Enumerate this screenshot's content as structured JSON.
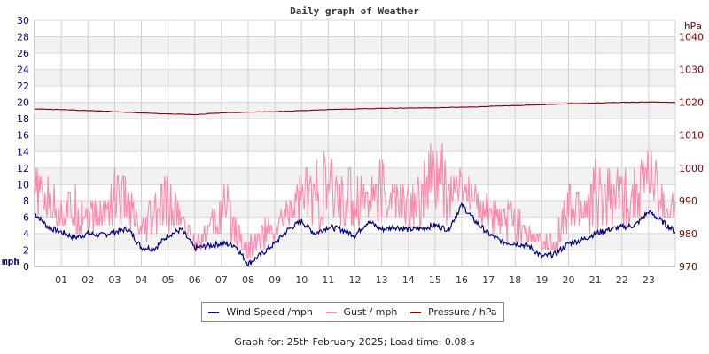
{
  "chart_data": {
    "type": "line",
    "title": "Daily graph of Weather",
    "xlabel": "",
    "ylabel": "mph",
    "ylabel_right": "hPa",
    "ylim": [
      0,
      30
    ],
    "ylim_right": [
      970,
      1045
    ],
    "x_ticks": [
      "01",
      "02",
      "03",
      "04",
      "05",
      "06",
      "07",
      "08",
      "09",
      "10",
      "11",
      "12",
      "13",
      "14",
      "15",
      "16",
      "17",
      "18",
      "19",
      "20",
      "21",
      "22",
      "23"
    ],
    "y_ticks_left": [
      0,
      2,
      4,
      6,
      8,
      10,
      12,
      14,
      16,
      18,
      20,
      22,
      24,
      26,
      28,
      30
    ],
    "y_ticks_right": [
      970,
      980,
      990,
      1000,
      1010,
      1020,
      1030,
      1040
    ],
    "grid": true,
    "legend_position": "bottom",
    "series": [
      {
        "name": "Wind Speed /mph",
        "color": "#000080",
        "axis": "left",
        "x": [
          0,
          0.5,
          1,
          1.5,
          2,
          2.5,
          3,
          3.5,
          4,
          4.5,
          5,
          5.5,
          6,
          6.5,
          7,
          7.5,
          8,
          8.5,
          9,
          9.5,
          10,
          10.5,
          11,
          11.5,
          12,
          12.5,
          13,
          13.5,
          14,
          14.5,
          15,
          15.5,
          16,
          16.5,
          17,
          17.5,
          18,
          18.5,
          19,
          19.5,
          20,
          20.5,
          21,
          21.5,
          22,
          22.5,
          23,
          23.5,
          24
        ],
        "values": [
          6.5,
          4.8,
          4.2,
          3.5,
          4,
          3.8,
          4.2,
          4.6,
          2.3,
          2.2,
          3.8,
          4.5,
          2.2,
          2.5,
          2.8,
          2.6,
          0.3,
          1.5,
          2.8,
          4.5,
          5.5,
          4,
          4.8,
          4.5,
          3.8,
          5.5,
          4.5,
          4.8,
          4.5,
          4.6,
          5,
          4.5,
          7.5,
          5.5,
          4,
          3,
          2.8,
          2.5,
          1.2,
          1.5,
          2.8,
          3.2,
          4,
          4.5,
          4.8,
          5,
          6.7,
          5.5,
          4.2
        ]
      },
      {
        "name": "Gust / mph",
        "color": "#ff88aa",
        "axis": "left",
        "x": [
          0,
          0.5,
          1,
          1.5,
          2,
          2.5,
          3,
          3.5,
          4,
          4.5,
          5,
          5.5,
          6,
          6.5,
          7,
          7.5,
          8,
          8.5,
          9,
          9.5,
          10,
          10.5,
          11,
          11.5,
          12,
          12.5,
          13,
          13.5,
          14,
          14.5,
          15,
          15.5,
          16,
          16.5,
          17,
          17.5,
          18,
          18.5,
          19,
          19.5,
          20,
          20.5,
          21,
          21.5,
          22,
          22.5,
          23,
          23.5,
          24
        ],
        "values": [
          11,
          10,
          8,
          9,
          8,
          7,
          12,
          9,
          4,
          9,
          10,
          6,
          3,
          5,
          10,
          7,
          2,
          5,
          5,
          8,
          11,
          12,
          13,
          11,
          12,
          11,
          12,
          10,
          9,
          11,
          16,
          12,
          11,
          9,
          8,
          6,
          9,
          4,
          3,
          4,
          9,
          10,
          12,
          11,
          12,
          11,
          15,
          9,
          8
        ]
      },
      {
        "name": "Pressure / hPa",
        "color": "#800000",
        "axis": "right",
        "x": [
          0,
          1,
          2,
          3,
          4,
          5,
          6,
          7,
          8,
          9,
          10,
          11,
          12,
          13,
          14,
          15,
          16,
          17,
          18,
          19,
          20,
          21,
          22,
          23,
          24
        ],
        "values": [
          1018,
          1017.8,
          1017.5,
          1017.2,
          1016.8,
          1016.5,
          1016.3,
          1016.8,
          1017,
          1017.2,
          1017.5,
          1017.8,
          1018,
          1018.2,
          1018.3,
          1018.4,
          1018.5,
          1018.8,
          1019,
          1019.3,
          1019.6,
          1019.8,
          1020,
          1020.1,
          1020
        ]
      }
    ]
  },
  "header": {
    "title": "Daily graph of Weather"
  },
  "axes": {
    "left_unit": "mph",
    "right_unit": "hPa"
  },
  "legend": {
    "items": [
      {
        "label": "Wind Speed /mph",
        "color": "#000080"
      },
      {
        "label": "Gust / mph",
        "color": "#ff88aa"
      },
      {
        "label": "Pressure / hPa",
        "color": "#800000"
      }
    ]
  },
  "footer": {
    "text": "Graph for: 25th February 2025; Load time: 0.08 s"
  }
}
